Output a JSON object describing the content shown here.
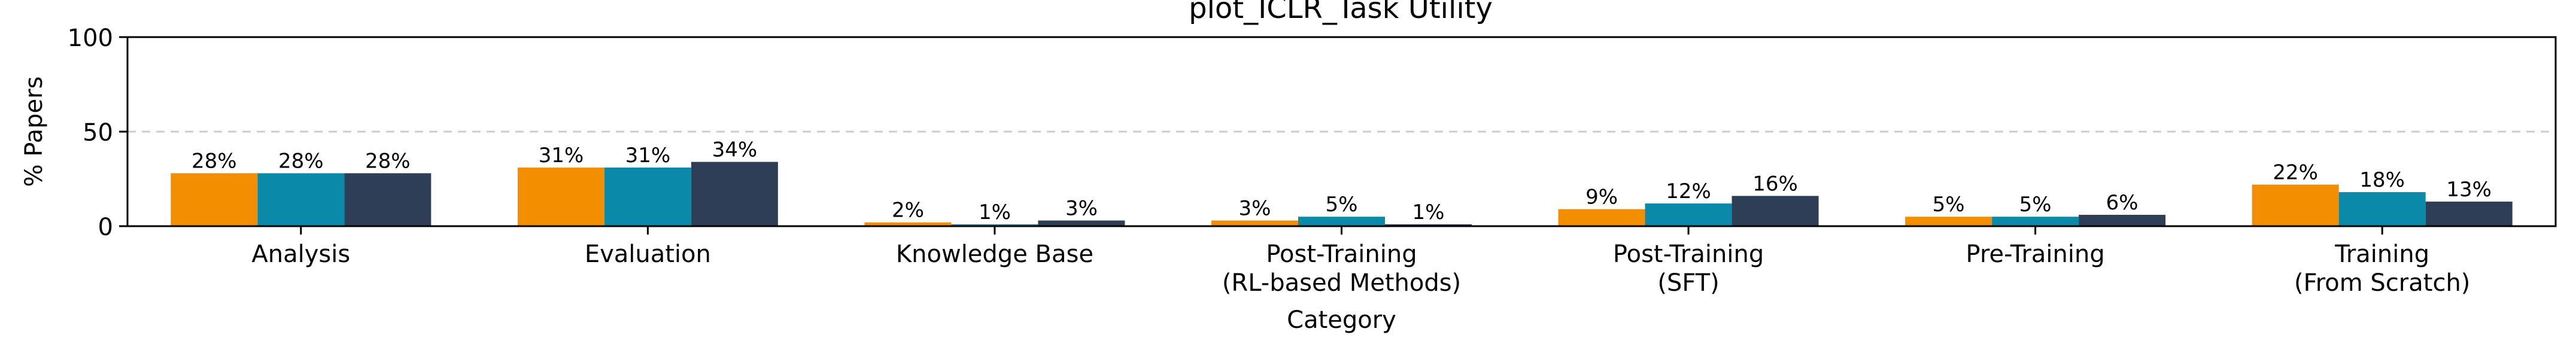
{
  "chart_data": {
    "type": "bar",
    "title": "plot_ICLR_Task Utility",
    "xlabel": "Category",
    "ylabel": "% Papers",
    "ylim": [
      0,
      100
    ],
    "yticks": [
      0,
      50,
      100
    ],
    "grid": "horizontal dashed at 50",
    "legend": "none",
    "categories": [
      [
        "Analysis"
      ],
      [
        "Evaluation"
      ],
      [
        "Knowledge Base"
      ],
      [
        "Post-Training",
        "(RL-based Methods)"
      ],
      [
        "Post-Training",
        "(SFT)"
      ],
      [
        "Pre-Training"
      ],
      [
        "Training",
        "(From Scratch)"
      ]
    ],
    "series": [
      {
        "color": "#F28E00",
        "values": [
          28,
          31,
          2,
          3,
          9,
          5,
          22
        ],
        "labels": [
          "28%",
          "31%",
          "2%",
          "3%",
          "9%",
          "5%",
          "22%"
        ]
      },
      {
        "color": "#0A89A8",
        "values": [
          28,
          31,
          1,
          5,
          12,
          5,
          18
        ],
        "labels": [
          "28%",
          "31%",
          "1%",
          "5%",
          "12%",
          "5%",
          "18%"
        ]
      },
      {
        "color": "#2E3E56",
        "values": [
          28,
          34,
          3,
          1,
          16,
          6,
          13
        ],
        "labels": [
          "28%",
          "34%",
          "3%",
          "1%",
          "16%",
          "6%",
          "13%"
        ]
      }
    ]
  }
}
